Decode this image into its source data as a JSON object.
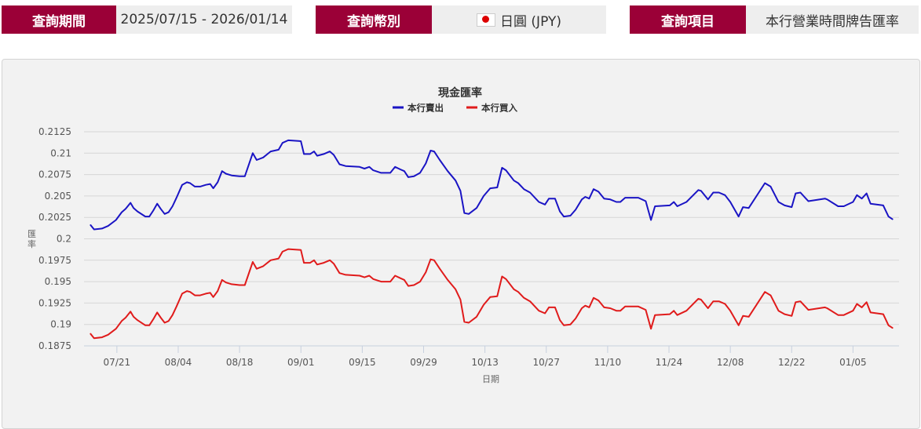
{
  "query": {
    "period_label": "查詢期間",
    "period_value": "2025/07/15 - 2026/01/14",
    "currency_label": "查詢幣別",
    "currency_value": "日圓 (JPY)",
    "currency_flag": "japan-flag-icon",
    "item_label": "查詢項目",
    "item_value": "本行營業時間牌告匯率"
  },
  "colors": {
    "brand": "#9b0037",
    "sell": "#1a14c4",
    "buy": "#e01b1b"
  },
  "chart_data": {
    "type": "line",
    "title": "現金匯率",
    "xlabel": "日期",
    "ylabel": "匯率",
    "x_unit": "days since 2025/07/15",
    "xlim": [
      -1.5,
      184.5
    ],
    "ylim": [
      0.1875,
      0.2125
    ],
    "yticks": [
      "0.2125",
      "0.21",
      "0.2075",
      "0.205",
      "0.2025",
      "0.2",
      "0.1975",
      "0.195",
      "0.1925",
      "0.19",
      "0.1875"
    ],
    "xticks": [
      {
        "day": 6,
        "label": "07/21"
      },
      {
        "day": 20,
        "label": "08/04"
      },
      {
        "day": 34,
        "label": "08/18"
      },
      {
        "day": 48,
        "label": "09/01"
      },
      {
        "day": 62,
        "label": "09/15"
      },
      {
        "day": 76,
        "label": "09/29"
      },
      {
        "day": 90,
        "label": "10/13"
      },
      {
        "day": 104,
        "label": "10/27"
      },
      {
        "day": 118,
        "label": "11/10"
      },
      {
        "day": 132,
        "label": "11/24"
      },
      {
        "day": 146,
        "label": "12/08"
      },
      {
        "day": 160,
        "label": "12/22"
      },
      {
        "day": 174,
        "label": "01/05"
      }
    ],
    "grid": true,
    "legend_position": "top-center",
    "x": [
      0,
      0.8,
      2.6,
      4.0,
      5.8,
      7.1,
      8.0,
      9.1,
      9.8,
      10.7,
      12.5,
      13.4,
      14.3,
      15.2,
      16.0,
      16.9,
      17.8,
      18.7,
      19.6,
      20.9,
      22.0,
      22.7,
      23.8,
      25.0,
      26.3,
      27.3,
      28.0,
      29.0,
      30.0,
      30.9,
      32.2,
      34.0,
      35.2,
      37.0,
      37.9,
      39.4,
      41.1,
      42.9,
      43.8,
      45.1,
      48.0,
      48.7,
      50.1,
      51.0,
      51.7,
      53.2,
      54.6,
      55.5,
      56.8,
      58.2,
      61.4,
      62.5,
      63.6,
      64.5,
      66.3,
      68.4,
      69.5,
      70.7,
      71.6,
      72.5,
      73.8,
      75.2,
      76.5,
      77.6,
      78.4,
      79.7,
      81.5,
      83.3,
      84.4,
      85.3,
      86.3,
      88.1,
      89.7,
      91.2,
      92.8,
      93.9,
      94.8,
      96.6,
      97.6,
      98.9,
      100.3,
      102.3,
      103.7,
      104.6,
      106.0,
      107.1,
      108.0,
      109.5,
      110.7,
      112.1,
      112.9,
      113.8,
      114.8,
      115.9,
      117.2,
      118.6,
      120.0,
      120.9,
      122.0,
      125.0,
      126.7,
      127.9,
      128.8,
      132.2,
      133.1,
      133.9,
      136.0,
      138.7,
      139.3,
      140.9,
      142.1,
      143.4,
      144.8,
      146.0,
      147.9,
      148.9,
      150.2,
      153.9,
      155.2,
      157.0,
      158.4,
      160.0,
      160.9,
      162.0,
      163.8,
      167.6,
      168.1,
      170.6,
      171.9,
      174.0,
      174.9,
      176.0,
      177.1,
      178.0,
      180.9,
      182.1,
      183.0
    ],
    "series": [
      {
        "name": "本行賣出",
        "color": "#1a14c4",
        "values": [
          0.2016,
          0.2011,
          0.2012,
          0.2015,
          0.2022,
          0.2031,
          0.2035,
          0.2042,
          0.2036,
          0.2032,
          0.2026,
          0.2026,
          0.2033,
          0.2041,
          0.2035,
          0.2029,
          0.2031,
          0.2038,
          0.2048,
          0.2063,
          0.2066,
          0.2065,
          0.2061,
          0.2061,
          0.2063,
          0.2064,
          0.2059,
          0.2066,
          0.2079,
          0.2076,
          0.2074,
          0.2073,
          0.2073,
          0.21,
          0.2092,
          0.2095,
          0.2102,
          0.2104,
          0.2112,
          0.2115,
          0.2114,
          0.2099,
          0.2099,
          0.2102,
          0.2097,
          0.2099,
          0.2102,
          0.2098,
          0.2087,
          0.2085,
          0.2084,
          0.2082,
          0.2084,
          0.208,
          0.2077,
          0.2077,
          0.2084,
          0.2081,
          0.2079,
          0.2072,
          0.2073,
          0.2077,
          0.2088,
          0.2103,
          0.2102,
          0.2092,
          0.2079,
          0.2068,
          0.2056,
          0.203,
          0.2029,
          0.2036,
          0.205,
          0.2059,
          0.206,
          0.2083,
          0.208,
          0.2068,
          0.2065,
          0.2058,
          0.2054,
          0.2043,
          0.204,
          0.2047,
          0.2047,
          0.2032,
          0.2026,
          0.2027,
          0.2034,
          0.2046,
          0.2049,
          0.2047,
          0.2058,
          0.2055,
          0.2047,
          0.2046,
          0.2043,
          0.2043,
          0.2048,
          0.2048,
          0.2044,
          0.2022,
          0.2038,
          0.2039,
          0.2043,
          0.2038,
          0.2043,
          0.2057,
          0.2056,
          0.2046,
          0.2054,
          0.2054,
          0.2051,
          0.2043,
          0.2026,
          0.2037,
          0.2036,
          0.2065,
          0.2061,
          0.2043,
          0.2039,
          0.2037,
          0.2053,
          0.2054,
          0.2044,
          0.2047,
          0.2046,
          0.2038,
          0.2038,
          0.2043,
          0.2051,
          0.2047,
          0.2053,
          0.2041,
          0.2039,
          0.2026,
          0.2023
        ]
      },
      {
        "name": "本行買入",
        "color": "#e01b1b",
        "values": [
          0.1889,
          0.1884,
          0.1885,
          0.1888,
          0.1895,
          0.1904,
          0.1908,
          0.1915,
          0.1909,
          0.1905,
          0.1899,
          0.1899,
          0.1906,
          0.1914,
          0.1908,
          0.1902,
          0.1904,
          0.1911,
          0.1921,
          0.1936,
          0.1939,
          0.1938,
          0.1934,
          0.1934,
          0.1936,
          0.1937,
          0.1932,
          0.1939,
          0.1952,
          0.1949,
          0.1947,
          0.1946,
          0.1946,
          0.1973,
          0.1965,
          0.1968,
          0.1975,
          0.1977,
          0.1985,
          0.1988,
          0.1987,
          0.1972,
          0.1972,
          0.1975,
          0.197,
          0.1972,
          0.1975,
          0.1971,
          0.196,
          0.1958,
          0.1957,
          0.1955,
          0.1957,
          0.1953,
          0.195,
          0.195,
          0.1957,
          0.1954,
          0.1952,
          0.1945,
          0.1946,
          0.195,
          0.1961,
          0.1976,
          0.1975,
          0.1965,
          0.1952,
          0.1941,
          0.1929,
          0.1903,
          0.1902,
          0.1909,
          0.1923,
          0.1932,
          0.1933,
          0.1956,
          0.1953,
          0.1941,
          0.1938,
          0.1931,
          0.1927,
          0.1916,
          0.1913,
          0.192,
          0.192,
          0.1905,
          0.1899,
          0.19,
          0.1907,
          0.1919,
          0.1922,
          0.192,
          0.1931,
          0.1928,
          0.192,
          0.1919,
          0.1916,
          0.1916,
          0.1921,
          0.1921,
          0.1917,
          0.1895,
          0.1911,
          0.1912,
          0.1916,
          0.1911,
          0.1916,
          0.193,
          0.1929,
          0.1919,
          0.1927,
          0.1927,
          0.1924,
          0.1916,
          0.1899,
          0.191,
          0.1909,
          0.1938,
          0.1934,
          0.1916,
          0.1912,
          0.191,
          0.1926,
          0.1927,
          0.1917,
          0.192,
          0.1919,
          0.1911,
          0.1911,
          0.1916,
          0.1924,
          0.192,
          0.1926,
          0.1914,
          0.1912,
          0.1899,
          0.1896
        ]
      }
    ]
  }
}
